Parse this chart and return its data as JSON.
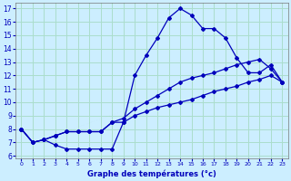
{
  "bg_color": "#cceeff",
  "grid_color": "#aaddcc",
  "line_color": "#0000bb",
  "x_label": "Graphe des températures (°c)",
  "xlim": [
    -0.5,
    23.5
  ],
  "ylim": [
    5.8,
    17.4
  ],
  "y_ticks": [
    6,
    7,
    8,
    9,
    10,
    11,
    12,
    13,
    14,
    15,
    16,
    17
  ],
  "x_ticks": [
    0,
    1,
    2,
    3,
    4,
    5,
    6,
    7,
    8,
    9,
    10,
    11,
    12,
    13,
    14,
    15,
    16,
    17,
    18,
    19,
    20,
    21,
    22,
    23
  ],
  "series_high": {
    "x": [
      0,
      1,
      2,
      3,
      4,
      5,
      6,
      7,
      8,
      9,
      10,
      11,
      12,
      13,
      14,
      15,
      16,
      17,
      18,
      19,
      20,
      21,
      22,
      23
    ],
    "y": [
      8.0,
      7.0,
      7.2,
      6.8,
      6.5,
      6.5,
      6.5,
      6.5,
      6.5,
      8.5,
      12.0,
      13.5,
      14.8,
      16.3,
      17.0,
      16.5,
      15.5,
      15.5,
      14.8,
      13.3,
      12.2,
      12.2,
      12.8,
      11.5
    ]
  },
  "series_avg": {
    "x": [
      0,
      1,
      2,
      3,
      4,
      5,
      6,
      7,
      8,
      9,
      10,
      11,
      12,
      13,
      14,
      15,
      16,
      17,
      18,
      19,
      20,
      21,
      22,
      23
    ],
    "y": [
      8.0,
      7.0,
      7.2,
      7.5,
      7.8,
      7.8,
      7.8,
      7.8,
      8.5,
      8.8,
      9.5,
      10.0,
      10.5,
      11.0,
      11.5,
      11.8,
      12.0,
      12.2,
      12.5,
      12.8,
      13.0,
      13.2,
      12.5,
      11.5
    ]
  },
  "series_low": {
    "x": [
      0,
      1,
      2,
      3,
      4,
      5,
      6,
      7,
      8,
      9,
      10,
      11,
      12,
      13,
      14,
      15,
      16,
      17,
      18,
      19,
      20,
      21,
      22,
      23
    ],
    "y": [
      8.0,
      7.0,
      7.2,
      7.5,
      7.8,
      7.8,
      7.8,
      7.8,
      8.5,
      8.5,
      9.0,
      9.3,
      9.6,
      9.8,
      10.0,
      10.2,
      10.5,
      10.8,
      11.0,
      11.2,
      11.5,
      11.7,
      12.0,
      11.5
    ]
  }
}
